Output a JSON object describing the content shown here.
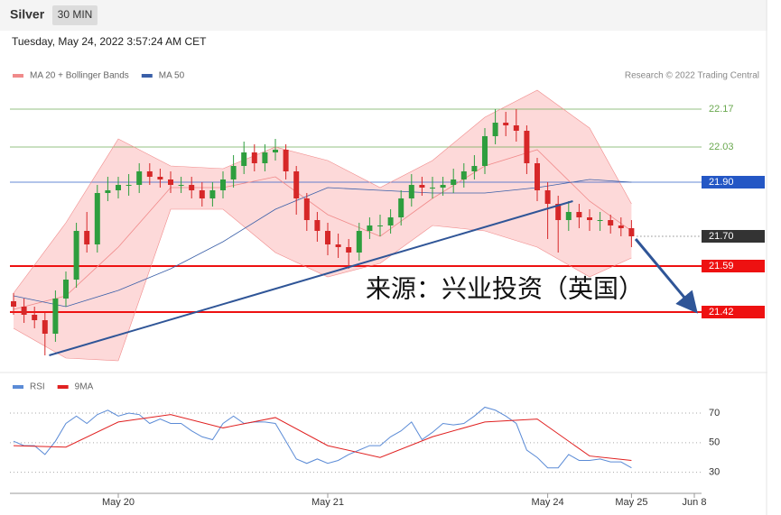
{
  "header": {
    "title": "Silver",
    "interval": "30 MIN",
    "timestamp": "Tuesday, May 24, 2022 3:57:24 AM CET"
  },
  "chart_data": [
    {
      "type": "candlestick",
      "source": "Research © 2022 Trading Central",
      "annotation": "来源：兴业投资（英国）",
      "categories": [
        null,
        null,
        null,
        null,
        null,
        null,
        null,
        null,
        null,
        null,
        "May 20",
        null,
        null,
        null,
        null,
        null,
        null,
        null,
        null,
        null,
        null,
        null,
        null,
        null,
        null,
        null,
        null,
        null,
        null,
        null,
        "May 21",
        null,
        null,
        null,
        null,
        null,
        null,
        null,
        null,
        null,
        null,
        null,
        null,
        null,
        null,
        null,
        null,
        null,
        null,
        null,
        null,
        "May 24",
        null,
        null,
        null,
        null,
        null,
        null,
        null,
        "May 25",
        null,
        null,
        null,
        null,
        null,
        "Jun 8"
      ],
      "open": [
        21.46,
        21.44,
        21.41,
        21.39,
        21.34,
        21.47,
        21.54,
        21.72,
        21.67,
        21.86,
        21.87,
        21.89,
        21.89,
        21.94,
        21.92,
        21.91,
        21.89,
        21.89,
        21.87,
        21.84,
        21.87,
        21.91,
        21.96,
        22.01,
        21.97,
        22.01,
        22.02,
        21.94,
        21.84,
        21.76,
        21.72,
        21.67,
        21.66,
        21.64,
        21.72,
        21.74,
        21.74,
        21.77,
        21.84,
        21.89,
        21.88,
        21.88,
        21.89,
        21.91,
        21.94,
        21.96,
        22.07,
        22.12,
        22.11,
        22.09,
        21.97,
        21.87,
        21.82,
        21.76,
        21.79,
        21.77,
        21.76,
        21.76,
        21.74,
        21.73,
        null,
        null,
        null,
        null,
        null,
        null
      ],
      "high": [
        21.49,
        21.47,
        21.44,
        21.42,
        21.5,
        21.57,
        21.75,
        21.79,
        21.89,
        21.92,
        21.92,
        21.93,
        21.97,
        21.97,
        21.95,
        21.94,
        21.92,
        21.92,
        21.9,
        21.9,
        21.94,
        22.0,
        22.05,
        22.04,
        22.04,
        22.06,
        22.04,
        21.96,
        21.86,
        21.79,
        21.75,
        21.71,
        21.69,
        21.75,
        21.77,
        21.78,
        21.8,
        21.87,
        21.93,
        21.92,
        21.92,
        21.92,
        21.95,
        21.97,
        22.0,
        22.1,
        22.17,
        22.16,
        22.17,
        22.11,
        21.99,
        21.9,
        21.85,
        21.83,
        21.82,
        21.8,
        21.79,
        21.78,
        21.77,
        21.76,
        null,
        null,
        null,
        null,
        null,
        null
      ],
      "low": [
        21.41,
        21.38,
        21.36,
        21.26,
        21.31,
        21.44,
        21.51,
        21.64,
        21.64,
        21.83,
        21.84,
        21.85,
        21.86,
        21.89,
        21.88,
        21.86,
        21.86,
        21.84,
        21.81,
        21.81,
        21.84,
        21.88,
        21.93,
        21.94,
        21.94,
        21.98,
        21.91,
        21.78,
        21.72,
        21.68,
        21.63,
        21.62,
        21.58,
        21.61,
        21.69,
        21.7,
        21.71,
        21.74,
        21.81,
        21.85,
        21.84,
        21.85,
        21.86,
        21.88,
        21.91,
        21.93,
        22.04,
        22.07,
        22.05,
        21.93,
        21.83,
        21.69,
        21.64,
        21.72,
        21.73,
        21.72,
        21.72,
        21.71,
        21.7,
        21.66,
        null,
        null,
        null,
        null,
        null,
        null
      ],
      "close": [
        21.44,
        21.41,
        21.39,
        21.34,
        21.47,
        21.54,
        21.72,
        21.67,
        21.86,
        21.87,
        21.89,
        21.89,
        21.94,
        21.92,
        21.91,
        21.89,
        21.89,
        21.87,
        21.84,
        21.87,
        21.91,
        21.96,
        22.01,
        21.97,
        22.01,
        22.02,
        21.94,
        21.84,
        21.76,
        21.72,
        21.67,
        21.66,
        21.64,
        21.72,
        21.74,
        21.74,
        21.77,
        21.84,
        21.89,
        21.88,
        21.88,
        21.89,
        21.91,
        21.94,
        21.96,
        22.07,
        22.12,
        22.11,
        22.09,
        21.97,
        21.87,
        21.82,
        21.76,
        21.79,
        21.77,
        21.76,
        21.76,
        21.74,
        21.73,
        21.7,
        null,
        null,
        null,
        null,
        null,
        null
      ],
      "up_color": "#2e9e3e",
      "down_color": "#d62728",
      "ylim": [
        21.2,
        22.25
      ],
      "yticks": [
        22.17,
        22.03,
        {
          "value": 21.9,
          "label": "21.90"
        },
        {
          "value": 21.7,
          "label": "21.70"
        },
        21.59,
        21.42
      ],
      "ytick_colors": [
        "#6aa84f",
        "#6aa84f",
        "#2457c5",
        "#333333",
        "#ee1111",
        "#ee1111"
      ],
      "ytick_styles": [
        "text",
        "text",
        "box",
        "box",
        "box",
        "box"
      ],
      "ytick_lines": [
        "solid",
        "solid",
        "solid",
        "dotted",
        "solid",
        "solid"
      ],
      "series": [
        {
          "name": "MA 20 + Bollinger Bands",
          "color": "#f08a8a",
          "band_color": "#fdd9d9",
          "x": [
            0,
            5,
            10,
            15,
            20,
            25,
            30,
            35,
            40,
            45,
            50,
            55,
            59
          ],
          "values": [
            21.43,
            21.48,
            21.66,
            21.88,
            21.88,
            21.92,
            21.78,
            21.7,
            21.84,
            21.96,
            22.02,
            21.83,
            21.72
          ],
          "upper": [
            21.49,
            21.75,
            22.06,
            21.96,
            21.95,
            22.03,
            21.98,
            21.88,
            21.98,
            22.14,
            22.24,
            22.1,
            21.82
          ],
          "lower": [
            21.36,
            21.25,
            21.24,
            21.8,
            21.8,
            21.64,
            21.55,
            21.6,
            21.74,
            21.72,
            21.66,
            21.55,
            21.62
          ]
        },
        {
          "name": "MA 50",
          "color": "#3a5fa8",
          "x": [
            0,
            5,
            10,
            15,
            20,
            25,
            30,
            35,
            40,
            45,
            50,
            55,
            59
          ],
          "values": [
            21.48,
            21.44,
            21.5,
            21.58,
            21.68,
            21.8,
            21.88,
            21.87,
            21.86,
            21.86,
            21.88,
            21.91,
            21.9
          ]
        }
      ],
      "trendline": {
        "color": "#2f5597",
        "x": [
          3.4,
          53.4
        ],
        "values": [
          21.26,
          21.83
        ]
      },
      "arrow": {
        "color": "#2f5597",
        "x": [
          59.4,
          65
        ],
        "values": [
          21.69,
          21.43
        ]
      }
    },
    {
      "type": "line",
      "ylim": [
        20,
        81
      ],
      "yticks": [
        70,
        50,
        30
      ],
      "series": [
        {
          "name": "RSI",
          "color": "#5b8bd6",
          "values": [
            51,
            48,
            48,
            42,
            51,
            63,
            68,
            63,
            69,
            72,
            68,
            70,
            69,
            63,
            66,
            63,
            63,
            58,
            54,
            52,
            63,
            68,
            63,
            64,
            64,
            63,
            51,
            39,
            36,
            39,
            36,
            38,
            42,
            45,
            48,
            48,
            54,
            58,
            64,
            52,
            57,
            63,
            62,
            63,
            68,
            74,
            72,
            68,
            63,
            45,
            40,
            33,
            33,
            42,
            38,
            38,
            39,
            37,
            37,
            33,
            null,
            null,
            null,
            null,
            null,
            null
          ]
        },
        {
          "name": "9MA",
          "color": "#e02020",
          "x": [
            0,
            5,
            10,
            15,
            20,
            25,
            30,
            35,
            40,
            45,
            50,
            55,
            59
          ],
          "values": [
            48,
            47,
            64,
            69,
            60,
            67,
            48,
            40,
            54,
            64,
            66,
            41,
            38
          ]
        }
      ]
    }
  ]
}
